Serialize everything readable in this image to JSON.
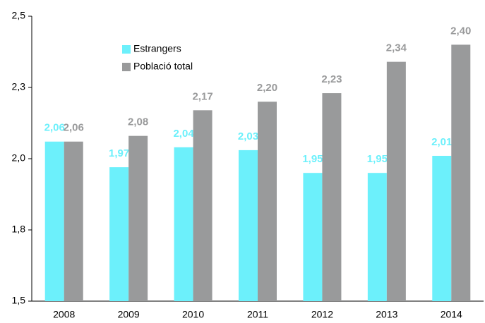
{
  "chart_data": {
    "type": "bar",
    "categories": [
      "2008",
      "2009",
      "2010",
      "2011",
      "2012",
      "2013",
      "2014"
    ],
    "series": [
      {
        "name": "Estrangers",
        "color": "#6cf0fb",
        "values": [
          2.06,
          1.97,
          2.04,
          2.03,
          1.95,
          1.95,
          2.01
        ],
        "value_labels": [
          "2,06",
          "1,97",
          "2,04",
          "2,03",
          "1,95",
          "1,95",
          "2,01"
        ]
      },
      {
        "name": "Població total",
        "color": "#999a9b",
        "values": [
          2.06,
          2.08,
          2.17,
          2.2,
          2.23,
          2.34,
          2.4
        ],
        "value_labels": [
          "2,06",
          "2,08",
          "2,17",
          "2,20",
          "2,23",
          "2,34",
          "2,40"
        ]
      }
    ],
    "ylim": [
      1.5,
      2.5
    ],
    "yticks": [
      {
        "value": 1.5,
        "label": "1,5"
      },
      {
        "value": 1.75,
        "label": "1,8"
      },
      {
        "value": 2.0,
        "label": "2,0"
      },
      {
        "value": 2.25,
        "label": "2,3"
      },
      {
        "value": 2.5,
        "label": "2,5"
      }
    ],
    "legend": "upper left"
  }
}
